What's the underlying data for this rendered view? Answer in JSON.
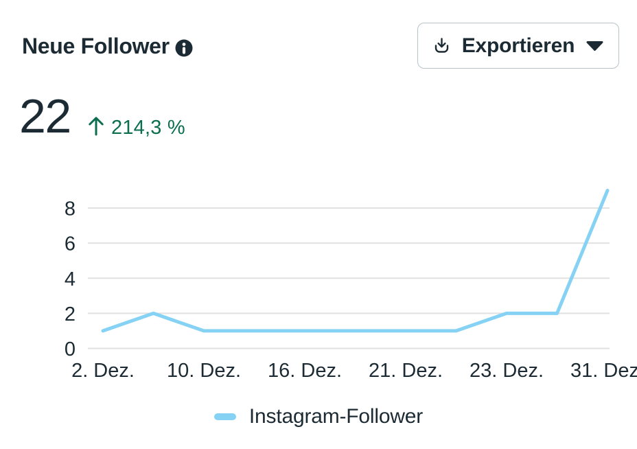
{
  "card": {
    "title": "Neue Follower",
    "export_button": {
      "label": "Exportieren"
    },
    "metric": {
      "value": "22",
      "trend_direction": "up",
      "trend_percent": "214,3 %"
    },
    "legend": [
      {
        "label": "Instagram-Follower",
        "color": "#86d2f4"
      }
    ]
  },
  "icons": {
    "info": "info-circle",
    "export": "download-tray",
    "export_caret": "triangle-down",
    "trend": "arrow-up"
  },
  "colors": {
    "text_primary": "#1c2b33",
    "positive_green": "#0b6e4f",
    "line_blue": "#86d2f4",
    "gridline": "#e1e1e1",
    "button_border": "#b8c2c9"
  },
  "chart_data": {
    "type": "line",
    "title": "Neue Follower",
    "series": [
      {
        "name": "Instagram-Follower",
        "color": "#86d2f4",
        "values": [
          1,
          2,
          1,
          1,
          1,
          1,
          1,
          1,
          2,
          2,
          9
        ]
      }
    ],
    "x_tick_labels": [
      "2. Dez.",
      "10. Dez.",
      "16. Dez.",
      "21. Dez.",
      "23. Dez.",
      "31. Dez."
    ],
    "x_tick_point_indices": [
      0,
      2,
      4,
      6,
      8,
      10
    ],
    "y_ticks": [
      0,
      2,
      4,
      6,
      8
    ],
    "ylim": [
      0,
      9
    ],
    "grid": "horizontal-only",
    "legend_position": "bottom",
    "axis_text_color": "#1c2b33",
    "gridline_color": "#e1e1e1"
  }
}
